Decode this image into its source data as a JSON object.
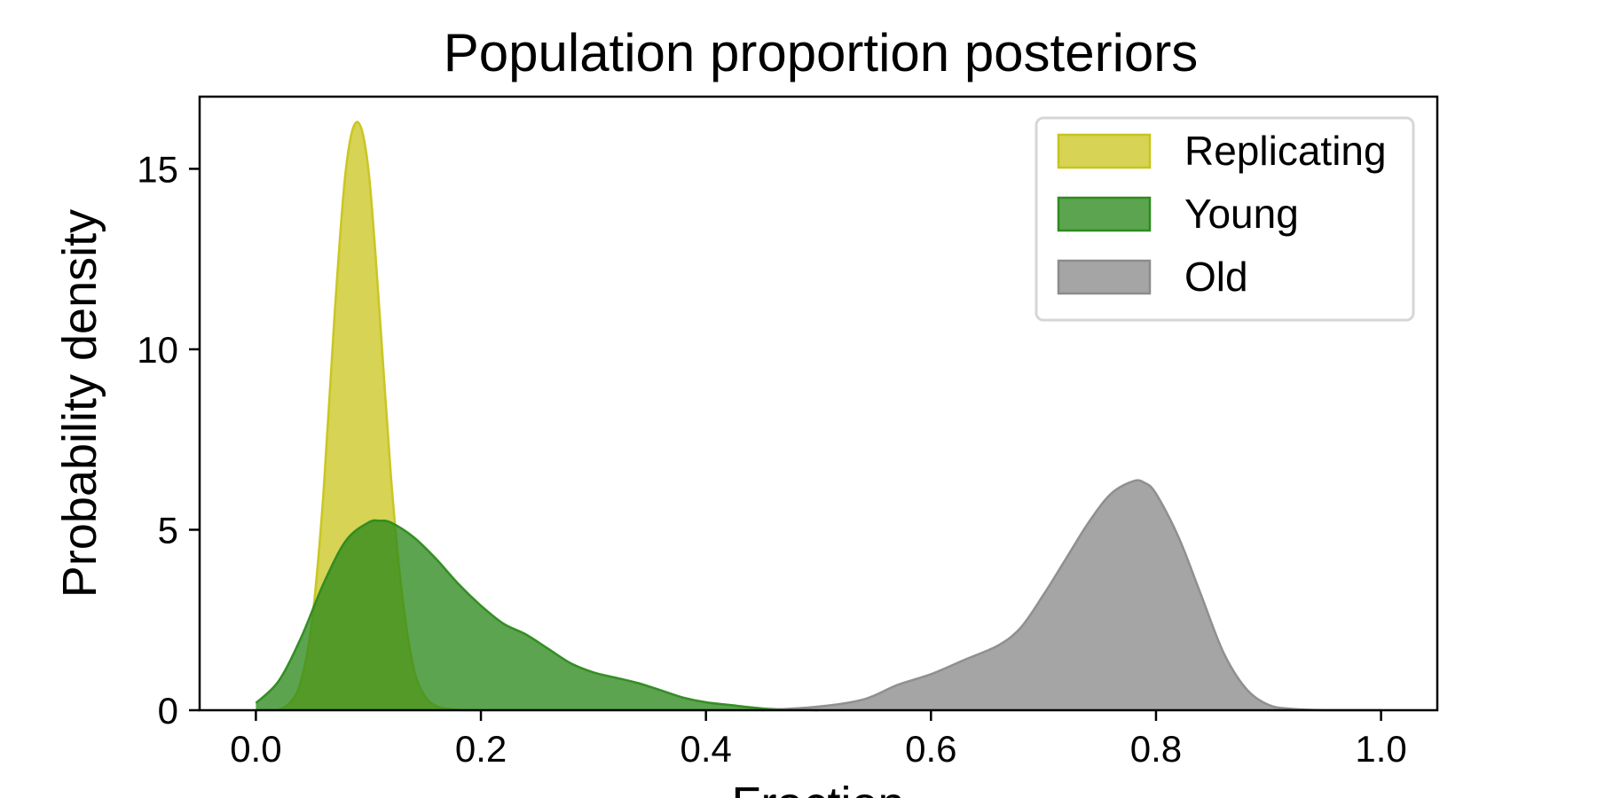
{
  "chart_data": {
    "type": "area",
    "title": "Population proportion posteriors",
    "xlabel": "Fraction",
    "ylabel": "Probability density",
    "xlim": [
      -0.05,
      1.05
    ],
    "ylim": [
      0,
      17
    ],
    "xticks": [
      "0.0",
      "0.2",
      "0.4",
      "0.6",
      "0.8",
      "1.0"
    ],
    "yticks": [
      "0",
      "5",
      "10",
      "15"
    ],
    "grid": false,
    "legend_position": "top-right",
    "series": [
      {
        "name": "Replicating",
        "color": "#c8c41c",
        "fill_opacity": 0.75,
        "x": [
          0.02,
          0.03,
          0.04,
          0.05,
          0.06,
          0.07,
          0.08,
          0.09,
          0.1,
          0.11,
          0.12,
          0.13,
          0.14,
          0.15,
          0.16,
          0.17,
          0.18,
          0.19,
          0.2
        ],
        "y": [
          0.0,
          0.2,
          0.8,
          2.5,
          6.0,
          11.0,
          15.0,
          16.3,
          15.0,
          11.0,
          6.5,
          3.2,
          1.2,
          0.4,
          0.12,
          0.04,
          0.01,
          0.0,
          0.0
        ]
      },
      {
        "name": "Young",
        "color": "#2e8b1e",
        "fill_opacity": 0.78,
        "x": [
          0.0,
          0.02,
          0.04,
          0.06,
          0.08,
          0.1,
          0.11,
          0.12,
          0.14,
          0.16,
          0.18,
          0.2,
          0.22,
          0.24,
          0.26,
          0.28,
          0.3,
          0.32,
          0.34,
          0.36,
          0.38,
          0.4,
          0.42,
          0.44,
          0.46,
          0.5
        ],
        "y": [
          0.2,
          0.8,
          2.0,
          3.5,
          4.7,
          5.2,
          5.25,
          5.2,
          4.8,
          4.2,
          3.5,
          2.9,
          2.4,
          2.1,
          1.7,
          1.3,
          1.05,
          0.9,
          0.75,
          0.55,
          0.35,
          0.22,
          0.15,
          0.08,
          0.03,
          0.0
        ]
      },
      {
        "name": "Old",
        "color": "#8c8c8c",
        "fill_opacity": 0.78,
        "x": [
          0.45,
          0.5,
          0.54,
          0.57,
          0.6,
          0.63,
          0.66,
          0.68,
          0.7,
          0.72,
          0.74,
          0.76,
          0.78,
          0.79,
          0.8,
          0.82,
          0.84,
          0.86,
          0.88,
          0.9,
          0.92,
          0.95,
          1.0
        ],
        "y": [
          0.0,
          0.1,
          0.3,
          0.7,
          1.0,
          1.4,
          1.8,
          2.3,
          3.2,
          4.2,
          5.2,
          6.0,
          6.35,
          6.3,
          6.0,
          4.8,
          3.2,
          1.6,
          0.6,
          0.15,
          0.04,
          0.0,
          0.0
        ]
      }
    ]
  }
}
